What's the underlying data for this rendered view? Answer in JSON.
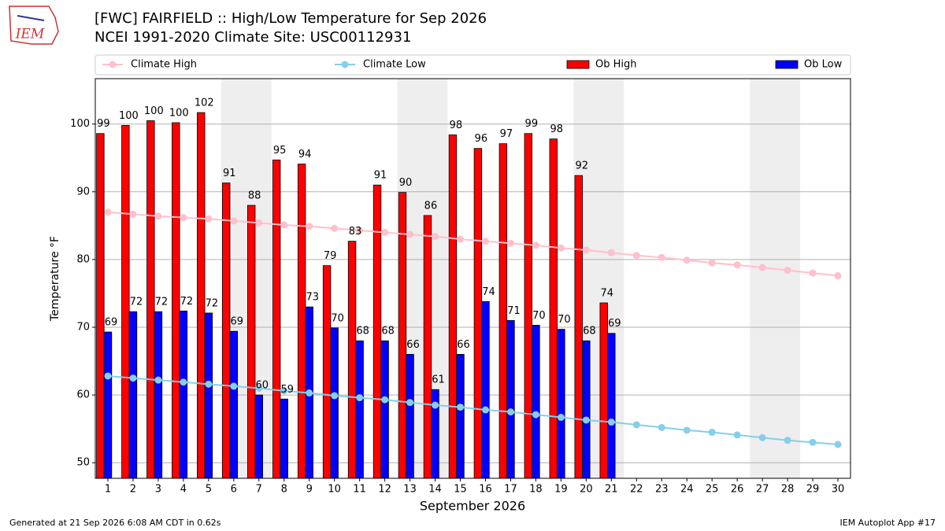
{
  "chart_data": {
    "type": "bar",
    "logo": "IEM",
    "title": "[FWC] FAIRFIELD :: High/Low Temperature for Sep 2026",
    "subtitle": "NCEI 1991-2020 Climate Site: USC00112931",
    "ylabel": "Temperature °F",
    "xlabel": "September 2026",
    "footer_left": "Generated at 21 Sep 2026 6:08 AM CDT in 0.62s",
    "footer_right": "IEM Autoplot App #17",
    "x": [
      1,
      2,
      3,
      4,
      5,
      6,
      7,
      8,
      9,
      10,
      11,
      12,
      13,
      14,
      15,
      16,
      17,
      18,
      19,
      20,
      21,
      22,
      23,
      24,
      25,
      26,
      27,
      28,
      29,
      30
    ],
    "xlim": [
      0.5,
      30.5
    ],
    "xticks": [
      1,
      2,
      3,
      4,
      5,
      6,
      7,
      8,
      9,
      10,
      11,
      12,
      13,
      14,
      15,
      16,
      17,
      18,
      19,
      20,
      21,
      22,
      23,
      24,
      25,
      26,
      27,
      28,
      29,
      30
    ],
    "ylim": [
      47.7,
      106.7
    ],
    "yticks": [
      50,
      60,
      70,
      80,
      90,
      100
    ],
    "grid": true,
    "weekend_spans": [
      [
        5.5,
        7.5
      ],
      [
        12.5,
        14.5
      ],
      [
        19.5,
        21.5
      ],
      [
        26.5,
        28.5
      ]
    ],
    "series": [
      {
        "name": "Climate High",
        "type": "line",
        "color": "#ffc0cb",
        "values": [
          87.0,
          86.7,
          86.4,
          86.2,
          86.0,
          85.7,
          85.4,
          85.1,
          84.9,
          84.6,
          84.3,
          84.0,
          83.7,
          83.4,
          83.0,
          82.7,
          82.4,
          82.1,
          81.7,
          81.4,
          81.0,
          80.6,
          80.3,
          79.9,
          79.5,
          79.2,
          78.8,
          78.4,
          78.0,
          77.6
        ]
      },
      {
        "name": "Climate Low",
        "type": "line",
        "color": "#87ceeb",
        "values": [
          62.8,
          62.5,
          62.2,
          61.9,
          61.6,
          61.3,
          61.0,
          60.6,
          60.3,
          59.9,
          59.6,
          59.3,
          58.9,
          58.5,
          58.2,
          57.8,
          57.5,
          57.1,
          56.7,
          56.3,
          56.0,
          55.6,
          55.2,
          54.8,
          54.5,
          54.1,
          53.7,
          53.3,
          53.0,
          52.7
        ]
      },
      {
        "name": "Ob High",
        "type": "bar",
        "color": "#ff0000",
        "values": [
          98.6,
          99.8,
          100.5,
          100.2,
          101.7,
          91.3,
          88.0,
          94.7,
          94.1,
          79.1,
          82.7,
          91.0,
          89.9,
          86.5,
          98.4,
          96.4,
          97.1,
          98.6,
          97.8,
          92.4,
          73.6,
          null,
          null,
          null,
          null,
          null,
          null,
          null,
          null,
          null
        ],
        "value_labels": [
          "99",
          "100",
          "100",
          "100",
          "102",
          "91",
          "88",
          "95",
          "94",
          "79",
          "83",
          "91",
          "90",
          "86",
          "98",
          "96",
          "97",
          "99",
          "98",
          "92",
          "74",
          null,
          null,
          null,
          null,
          null,
          null,
          null,
          null,
          null
        ]
      },
      {
        "name": "Ob Low",
        "type": "bar",
        "color": "#0000ff",
        "values": [
          69.3,
          72.3,
          72.3,
          72.4,
          72.1,
          69.4,
          60.0,
          59.4,
          73.0,
          69.9,
          68.0,
          68.0,
          66.0,
          60.8,
          66.0,
          73.8,
          71.0,
          70.3,
          69.7,
          68.0,
          69.1,
          null,
          null,
          null,
          null,
          null,
          null,
          null,
          null,
          null
        ],
        "value_labels": [
          "69",
          "72",
          "72",
          "72",
          "72",
          "69",
          "60",
          "59",
          "73",
          "70",
          "68",
          "68",
          "66",
          "61",
          "66",
          "74",
          "71",
          "70",
          "70",
          "68",
          "69",
          null,
          null,
          null,
          null,
          null,
          null,
          null,
          null,
          null
        ]
      }
    ]
  }
}
